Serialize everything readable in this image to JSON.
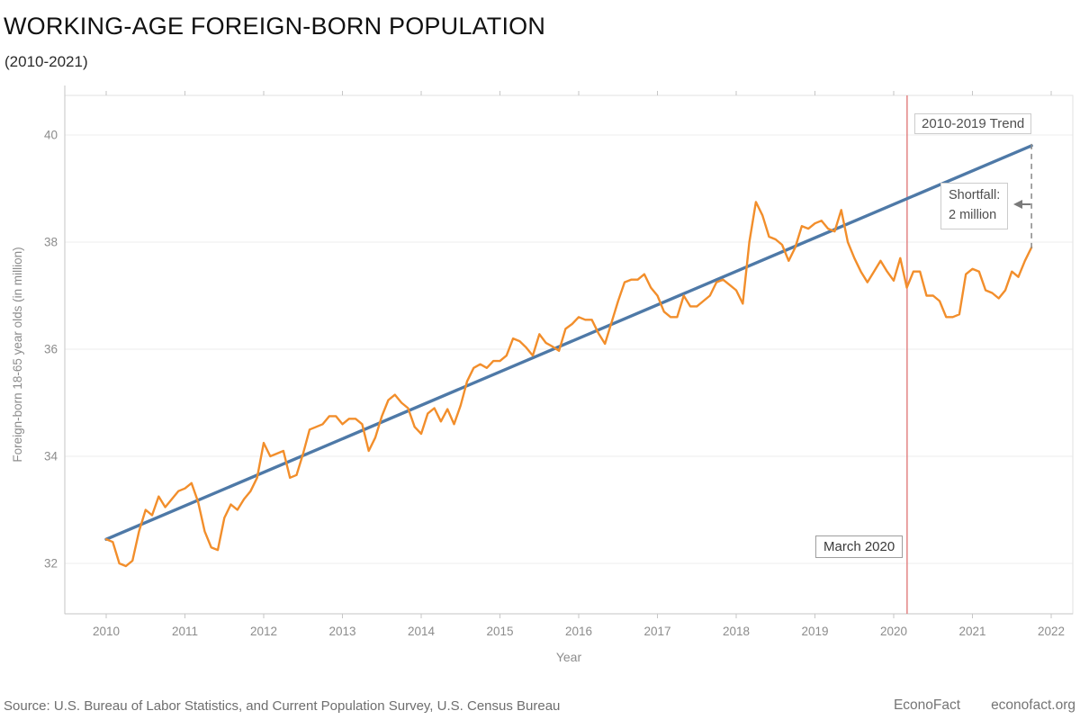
{
  "header": {
    "title": "WORKING-AGE FOREIGN-BORN POPULATION",
    "subtitle": "(2010-2021)"
  },
  "footer": {
    "source": "Source: U.S. Bureau of Labor Statistics, and Current Population Survey, U.S. Census Bureau",
    "brand": "EconoFact",
    "site": "econofact.org"
  },
  "chart_data": {
    "type": "line",
    "title": "WORKING-AGE FOREIGN-BORN POPULATION (2010-2021)",
    "xlabel": "Year",
    "ylabel": "Foreign-born 18-65 year olds (in million)",
    "x_ticks": [
      2010,
      2011,
      2012,
      2013,
      2014,
      2015,
      2016,
      2017,
      2018,
      2019,
      2020,
      2021,
      2022
    ],
    "y_ticks": [
      32,
      34,
      36,
      38,
      40
    ],
    "xlim": [
      2009.47,
      2022.27
    ],
    "ylim": [
      31.06,
      40.74
    ],
    "grid": "horizontal",
    "legend": "none",
    "series": [
      {
        "name": "Foreign-born 18-65 year olds, monthly",
        "color": "#f28e2b",
        "x_start_year": 2010,
        "x_step_months": 1,
        "values": [
          32.45,
          32.4,
          32.0,
          31.95,
          32.05,
          32.6,
          33.0,
          32.9,
          33.25,
          33.05,
          33.2,
          33.35,
          33.4,
          33.5,
          33.15,
          32.6,
          32.3,
          32.25,
          32.85,
          33.1,
          33.0,
          33.2,
          33.35,
          33.6,
          34.25,
          34.0,
          34.05,
          34.1,
          33.6,
          33.65,
          34.05,
          34.5,
          34.55,
          34.6,
          34.75,
          34.75,
          34.6,
          34.7,
          34.7,
          34.6,
          34.1,
          34.35,
          34.75,
          35.05,
          35.15,
          35.0,
          34.9,
          34.55,
          34.42,
          34.8,
          34.9,
          34.65,
          34.88,
          34.6,
          34.95,
          35.4,
          35.65,
          35.72,
          35.65,
          35.78,
          35.78,
          35.88,
          36.2,
          36.15,
          36.03,
          35.88,
          36.28,
          36.12,
          36.05,
          35.97,
          36.38,
          36.47,
          36.6,
          36.55,
          36.55,
          36.3,
          36.1,
          36.5,
          36.9,
          37.25,
          37.3,
          37.3,
          37.4,
          37.15,
          37.0,
          36.7,
          36.6,
          36.6,
          37.0,
          36.8,
          36.8,
          36.9,
          37.0,
          37.25,
          37.3,
          37.2,
          37.1,
          36.85,
          38.0,
          38.75,
          38.5,
          38.1,
          38.05,
          37.95,
          37.65,
          37.9,
          38.3,
          38.25,
          38.35,
          38.4,
          38.25,
          38.2,
          38.6,
          38.0,
          37.7,
          37.45,
          37.25,
          37.45,
          37.65,
          37.45,
          37.28,
          37.7,
          37.15,
          37.45,
          37.45,
          37.0,
          37.0,
          36.9,
          36.6,
          36.6,
          36.65,
          37.4,
          37.5,
          37.45,
          37.1,
          37.05,
          36.95,
          37.1,
          37.45,
          37.35,
          37.65,
          37.9
        ]
      },
      {
        "name": "2010-2019 Trend",
        "color": "#4e79a7",
        "points": [
          [
            2010.0,
            32.45
          ],
          [
            2021.75,
            39.8
          ]
        ]
      }
    ],
    "annotations": {
      "trend_label": {
        "text": "2010-2019 Trend"
      },
      "march_line": {
        "x": 2020.17,
        "label": "March 2020",
        "color": "#e07b7b"
      },
      "shortfall": {
        "line1": "Shortfall:",
        "line2": "2 million",
        "x": 2021.75,
        "from": 39.8,
        "to": 37.9
      }
    },
    "colors": {
      "actual_line": "#f28e2b",
      "trend_line": "#4e79a7",
      "event_line": "#e07b7b",
      "grid": "#eeeeee",
      "axis": "#c6c6c6",
      "tick_text": "#8c8c8c",
      "dashed_connector": "#8f8f8f",
      "arrow": "#7a7a7a"
    }
  }
}
